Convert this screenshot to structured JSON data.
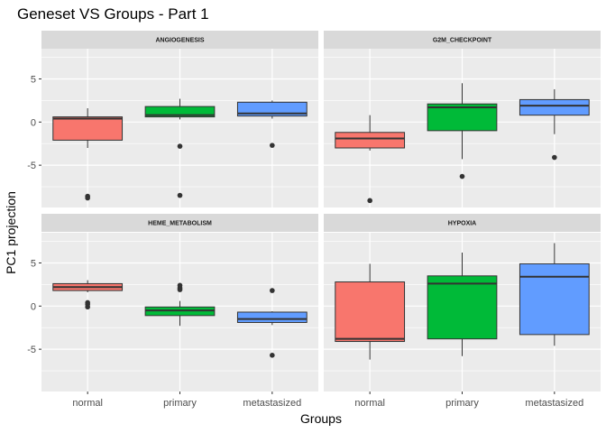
{
  "chart_data": {
    "type": "box",
    "title": "Geneset VS Groups - Part 1",
    "xlabel": "Groups",
    "ylabel": "PC1 projection",
    "categories": [
      "normal",
      "primary",
      "metastasized"
    ],
    "colors": {
      "normal": "#F8766D",
      "primary": "#00BA38",
      "metastasized": "#619CFF"
    },
    "ylim": [
      -9.9,
      8.5
    ],
    "yticks": [
      -5,
      0,
      5
    ],
    "ytick_labels": [
      "-5",
      "0",
      "5"
    ],
    "grid": true,
    "legend": "none",
    "panels": [
      {
        "label": "ANGIOGENESIS",
        "boxes": [
          {
            "group": "normal",
            "min": -3.0,
            "q1": -2.1,
            "median": 0.4,
            "q3": 0.6,
            "max": 1.6,
            "outliers": [
              -8.6,
              -8.8
            ]
          },
          {
            "group": "primary",
            "min": 0.3,
            "q1": 0.6,
            "median": 0.8,
            "q3": 1.8,
            "max": 2.7,
            "outliers": [
              -2.8,
              -8.5
            ]
          },
          {
            "group": "metastasized",
            "min": 0.4,
            "q1": 0.7,
            "median": 1.0,
            "q3": 2.3,
            "max": 2.5,
            "outliers": [
              -2.7
            ]
          }
        ]
      },
      {
        "label": "G2M_CHECKPOINT",
        "boxes": [
          {
            "group": "normal",
            "min": -3.3,
            "q1": -3.0,
            "median": -1.9,
            "q3": -1.2,
            "max": 0.8,
            "outliers": [
              -9.1
            ]
          },
          {
            "group": "primary",
            "min": -4.3,
            "q1": -1.0,
            "median": 1.7,
            "q3": 2.1,
            "max": 4.5,
            "outliers": [
              -6.3
            ]
          },
          {
            "group": "metastasized",
            "min": -1.4,
            "q1": 0.8,
            "median": 1.9,
            "q3": 2.6,
            "max": 3.8,
            "outliers": [
              -4.1
            ]
          }
        ]
      },
      {
        "label": "HEME_METABOLISM",
        "boxes": [
          {
            "group": "normal",
            "min": 1.6,
            "q1": 1.8,
            "median": 2.2,
            "q3": 2.6,
            "max": 3.0,
            "outliers": [
              0.4,
              0.2,
              -0.1
            ]
          },
          {
            "group": "primary",
            "min": -2.3,
            "q1": -1.1,
            "median": -0.5,
            "q3": -0.1,
            "max": 0.6,
            "outliers": [
              2.4,
              2.1,
              1.9
            ]
          },
          {
            "group": "metastasized",
            "min": -2.2,
            "q1": -1.9,
            "median": -1.5,
            "q3": -0.7,
            "max": -0.6,
            "outliers": [
              1.8,
              -5.7
            ]
          }
        ]
      },
      {
        "label": "HYPOXIA",
        "boxes": [
          {
            "group": "normal",
            "min": -6.2,
            "q1": -4.1,
            "median": -3.8,
            "q3": 2.8,
            "max": 4.9,
            "outliers": []
          },
          {
            "group": "primary",
            "min": -5.8,
            "q1": -3.8,
            "median": 2.6,
            "q3": 3.5,
            "max": 6.2,
            "outliers": []
          },
          {
            "group": "metastasized",
            "min": -4.6,
            "q1": -3.3,
            "median": 3.4,
            "q3": 4.9,
            "max": 7.3,
            "outliers": []
          }
        ]
      }
    ]
  }
}
